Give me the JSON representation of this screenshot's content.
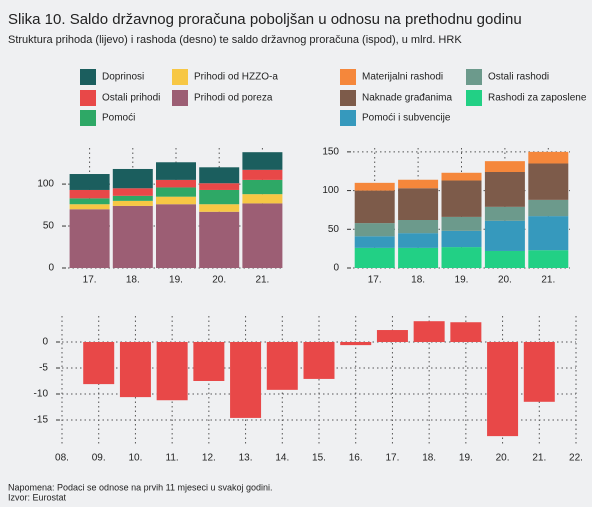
{
  "title": "Slika 10. Saldo državnog proračuna poboljšan u odnosu na prethodnu godinu",
  "subtitle": "Struktura prihoda (lijevo) i rashoda (desno) te saldo državnog proračuna (ispod), u mlrd. HRK",
  "note": "Napomena: Podaci se odnose na prvih 11 mjeseci u svakoj godini.",
  "source": "Izvor: Eurostat",
  "chart_data": [
    {
      "type": "bar",
      "stacked": true,
      "categories": [
        "17.",
        "18.",
        "19.",
        "20.",
        "21."
      ],
      "series": [
        {
          "name": "Prihodi od poreza",
          "color": "#9c5e74",
          "values": [
            70,
            74,
            76,
            67,
            77
          ]
        },
        {
          "name": "Prihodi od HZZO-a",
          "color": "#f7c744",
          "values": [
            6,
            6,
            9,
            9,
            11
          ]
        },
        {
          "name": "Pomoći",
          "color": "#2ea866",
          "values": [
            7,
            6,
            11,
            17,
            17
          ]
        },
        {
          "name": "Ostali prihodi",
          "color": "#e84848",
          "values": [
            10,
            9,
            9,
            8,
            12
          ]
        },
        {
          "name": "Doprinosi",
          "color": "#1b5e5e",
          "values": [
            19,
            23,
            21,
            19,
            21
          ]
        }
      ],
      "ylim": [
        0,
        143
      ],
      "yticks": [
        0,
        50,
        100
      ],
      "grid": true
    },
    {
      "type": "bar",
      "stacked": true,
      "categories": [
        "17.",
        "18.",
        "19.",
        "20.",
        "21."
      ],
      "series": [
        {
          "name": "Rashodi za zaposlene",
          "color": "#22d085",
          "values": [
            26,
            26,
            27,
            22,
            23
          ]
        },
        {
          "name": "Pomoći i subvencije",
          "color": "#3699bd",
          "values": [
            15,
            19,
            21,
            39,
            44
          ]
        },
        {
          "name": "Ostali rashodi",
          "color": "#6c9a8c",
          "values": [
            17,
            17,
            18,
            18,
            21
          ]
        },
        {
          "name": "Naknade građanima",
          "color": "#7d5b4a",
          "values": [
            42,
            41,
            47,
            45,
            47
          ]
        },
        {
          "name": "Materijalni rashodi",
          "color": "#f5873b",
          "values": [
            10,
            11,
            10,
            14,
            15
          ]
        }
      ],
      "ylim": [
        0,
        155
      ],
      "yticks": [
        0,
        50,
        100,
        150
      ],
      "grid": true
    },
    {
      "type": "bar",
      "categories": [
        "08.",
        "09.",
        "10.",
        "11.",
        "12.",
        "13.",
        "14.",
        "15.",
        "16.",
        "17.",
        "18.",
        "19.",
        "20.",
        "21.",
        "22."
      ],
      "values": [
        null,
        -8.1,
        -10.6,
        -11.2,
        -7.5,
        -14.6,
        -9.2,
        -7.1,
        -0.6,
        2.3,
        4.0,
        3.8,
        -18.1,
        -11.5,
        null
      ],
      "color": "#e84848",
      "ylim": [
        -20,
        5
      ],
      "yticks": [
        -15,
        -10,
        -5,
        0
      ],
      "grid": true
    }
  ]
}
